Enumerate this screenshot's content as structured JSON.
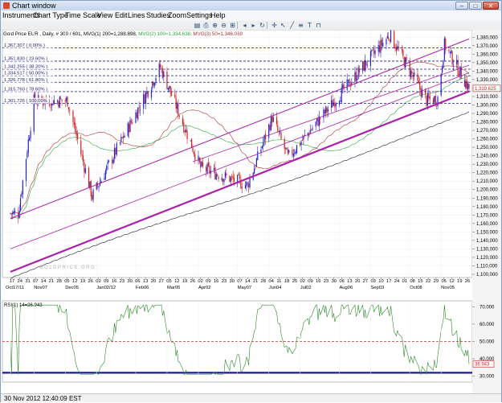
{
  "window": {
    "title": "Chart window",
    "minimize_label": "–",
    "maximize_label": "□",
    "close_label": "✕"
  },
  "menu": [
    "Instruments",
    "Chart Type",
    "Time Scale",
    "View",
    "Edit",
    "Lines",
    "Studies",
    "Zoom",
    "Settings",
    "Help"
  ],
  "toolbar_icons": [
    "new-chart-icon",
    "print-icon",
    "zoom-in-icon",
    "zoom-out-icon",
    "zoom-fit-icon",
    "scroll-left-icon",
    "scroll-right-icon",
    "refresh-icon",
    "crosshair-icon",
    "cursor-icon",
    "draw-line-icon",
    "fibonacci-icon",
    "text-tool-icon",
    "magnet-icon"
  ],
  "toolbar_glyphs": [
    "▤",
    "⎙",
    "⊕",
    "⊖",
    "⊞",
    "◂",
    "▸",
    "↻",
    "✛",
    "↖",
    "╱",
    "≡",
    "T",
    "⊓"
  ],
  "chart": {
    "header_prefix": "Gold Price EUR , Daily, # 300 / 601, MVG(1) 200=1,288.898, ",
    "header_green": "MVG(2) 100=1,334.638, ",
    "header_red": "MVG(3) 50=1,346.069",
    "watermark": "GOLDPRICE.ORG",
    "price_labels": [
      "1,380,000",
      "1,370,000",
      "1,360,000",
      "1,350,000",
      "1,340,000",
      "1,330,000",
      "1,320,000",
      "1,310,000",
      "1,300,000",
      "1,290,000",
      "1,280,000",
      "1,270,000",
      "1,260,000",
      "1,250,000",
      "1,240,000",
      "1,230,000",
      "1,220,000",
      "1,210,000",
      "1,200,000",
      "1,190,000",
      "1,180,000",
      "1,170,000",
      "1,160,000",
      "1,150,000",
      "1,140,000",
      "1,130,000",
      "1,120,000",
      "1,110,000",
      "1,100,000"
    ],
    "fib_labels": [
      "1,367.307 ( 0.00% )",
      "1,351.830 ( 23.60% )",
      "1,342.255 ( 38.20% )",
      "1,334.517 ( 50.00% )",
      "1,326.778 ( 61.80% )",
      "1,315.760 ( 78.60% )",
      "1,301.726 ( 100.00% )"
    ],
    "current_price": "1,319.625",
    "day_ticks": [
      "17",
      "24",
      "31",
      "07",
      "14",
      "21",
      "28",
      "05",
      "12",
      "19",
      "26",
      "02",
      "09",
      "16",
      "23",
      "30",
      "06",
      "13",
      "20",
      "27",
      "05",
      "12",
      "19",
      "26",
      "02",
      "09",
      "16",
      "23",
      "30",
      "07",
      "14",
      "21",
      "28",
      "04",
      "11",
      "18",
      "25",
      "02",
      "09",
      "16",
      "23",
      "30",
      "06",
      "13",
      "20",
      "27",
      "03",
      "10",
      "17",
      "24",
      "01",
      "08",
      "15",
      "22",
      "29",
      "05",
      "12",
      "19",
      "26"
    ],
    "month_labels": [
      "Oct17/11",
      "Nov07",
      "Dec05",
      "Jan02/12",
      "Feb06",
      "Mar05",
      "Apr02",
      "May07",
      "Jun04",
      "Jul02",
      "Aug06",
      "Sep03",
      "Oct08",
      "Nov05"
    ]
  },
  "rsi": {
    "label": "RSI(1) 14=36.943",
    "value": "36.943",
    "scale": [
      "70.000",
      "60.000",
      "50.000",
      "40.000",
      "30.000"
    ]
  },
  "status": {
    "timestamp": "30 Nov 2012 12:40:09 EST"
  },
  "chart_data": {
    "type": "candlestick",
    "instrument": "Gold Price EUR",
    "timeframe": "Daily",
    "x_start": "2011-10-17",
    "x_end": "2012-11-30",
    "ylim": [
      1100,
      1385
    ],
    "last_close": 1319.625,
    "key_points": [
      {
        "x": "2011-10-24",
        "y": 1172
      },
      {
        "x": "2011-11-07",
        "y": 1305
      },
      {
        "x": "2011-12-07",
        "y": 1305
      },
      {
        "x": "2011-12-29",
        "y": 1192
      },
      {
        "x": "2012-02-28",
        "y": 1345
      },
      {
        "x": "2012-04-04",
        "y": 1226
      },
      {
        "x": "2012-05-16",
        "y": 1205
      },
      {
        "x": "2012-06-07",
        "y": 1285
      },
      {
        "x": "2012-06-21",
        "y": 1238
      },
      {
        "x": "2012-09-20",
        "y": 1383
      },
      {
        "x": "2012-10-23",
        "y": 1305
      },
      {
        "x": "2012-11-02",
        "y": 1308
      },
      {
        "x": "2012-11-08",
        "y": 1371
      },
      {
        "x": "2012-11-30",
        "y": 1319.625
      }
    ],
    "moving_averages": [
      {
        "name": "MVG(1) 200",
        "last": 1288.898,
        "color": "#1a1a2e"
      },
      {
        "name": "MVG(2) 100",
        "last": 1334.638,
        "color": "#2aa83a"
      },
      {
        "name": "MVG(3) 50",
        "last": 1346.069,
        "color": "#b03030"
      }
    ],
    "fibonacci_retracement": [
      {
        "level": "0.00%",
        "price": 1367.307
      },
      {
        "level": "23.60%",
        "price": 1351.83
      },
      {
        "level": "38.20%",
        "price": 1342.255
      },
      {
        "level": "50.00%",
        "price": 1334.517
      },
      {
        "level": "61.80%",
        "price": 1326.778
      },
      {
        "level": "78.60%",
        "price": 1315.76
      },
      {
        "level": "100.00%",
        "price": 1301.726
      }
    ],
    "rsi": {
      "period": 14,
      "last": 36.943,
      "ylim": [
        28,
        72
      ],
      "reference_levels": [
        50,
        32
      ]
    }
  },
  "colors": {
    "bull_candle": "#2222cc",
    "bear_candle": "#cc2222",
    "trendline": "#aa22aa",
    "fib_line": "#1a1a8a",
    "rsi_line": "#2c8a2c",
    "rsi_base": "#1a1aa0",
    "ma200": "#1a1a2e",
    "ma100": "#2aa83a",
    "ma50": "#b03030"
  }
}
